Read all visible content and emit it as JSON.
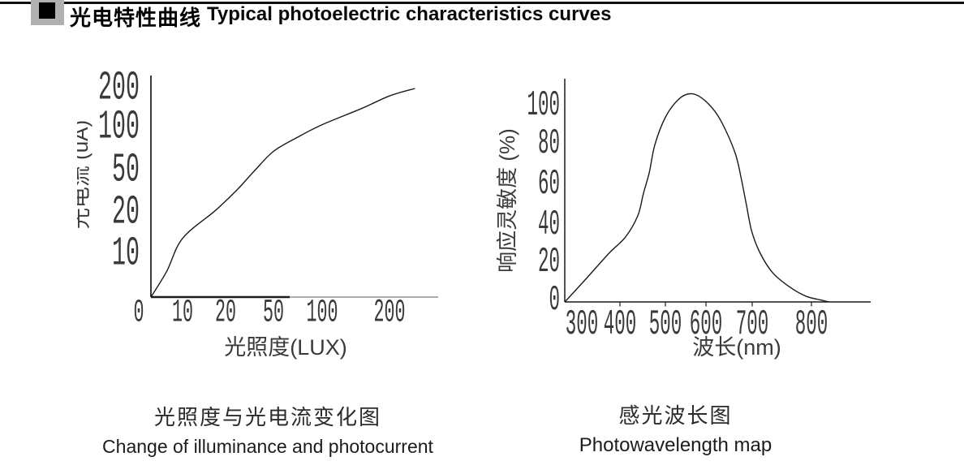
{
  "header": {
    "bullet_icon": "black-square",
    "title_zh": "光电特性曲线",
    "title_en": "Typical photoelectric characteristics curves"
  },
  "colors": {
    "ink": "#1a1a1a",
    "label_ink": "#3a3a3a",
    "axis_fade": "#8f8f8f",
    "header_highlight": "#b0b0b0"
  },
  "chart_data": [
    {
      "type": "line",
      "title_zh": "光照度与光电流变化图",
      "title_en": "Change of illuminance and photocurrent",
      "xlabel": "光照度(LUX)",
      "ylabel": "光电流 (uA)",
      "x_scale": "log-like",
      "y_scale": "log-like",
      "x_ticks": [
        0,
        10,
        20,
        50,
        100,
        200
      ],
      "y_ticks": [
        200,
        100,
        50,
        20,
        10
      ],
      "x_range": [
        0,
        260
      ],
      "y_range": [
        0,
        210
      ],
      "grid": false,
      "legend": "none",
      "series": [
        {
          "name": "photocurrent-vs-illuminance",
          "points": [
            [
              0,
              0
            ],
            [
              5,
              6
            ],
            [
              10,
              13
            ],
            [
              17,
              21
            ],
            [
              25,
              33
            ],
            [
              35,
              50
            ],
            [
              50,
              68
            ],
            [
              70,
              85
            ],
            [
              100,
              105
            ],
            [
              150,
              140
            ],
            [
              200,
              175
            ],
            [
              260,
              200
            ]
          ]
        }
      ]
    },
    {
      "type": "line",
      "title_zh": "感光波长图",
      "title_en": "Photowavelength map",
      "xlabel": "波长(nm)",
      "ylabel": "响应灵敏度 (%)",
      "x_scale": "linear",
      "y_scale": "linear",
      "x_ticks": [
        300,
        400,
        500,
        600,
        700,
        800
      ],
      "y_ticks": [
        100,
        80,
        60,
        40,
        20,
        0
      ],
      "x_range": [
        263,
        850
      ],
      "y_range": [
        0,
        110
      ],
      "grid": false,
      "legend": "none",
      "peak": {
        "wavelength": 540,
        "sensitivity": 106
      },
      "series": [
        {
          "name": "spectral-response",
          "points": [
            [
              263,
              0
            ],
            [
              310,
              12
            ],
            [
              360,
              25
            ],
            [
              395,
              33
            ],
            [
              422,
              44
            ],
            [
              434,
              55
            ],
            [
              447,
              66
            ],
            [
              459,
              80
            ],
            [
              482,
              94
            ],
            [
              510,
              103
            ],
            [
              535,
              106
            ],
            [
              560,
              104
            ],
            [
              590,
              97
            ],
            [
              612,
              88
            ],
            [
              635,
              75
            ],
            [
              647,
              63
            ],
            [
              658,
              50
            ],
            [
              670,
              36
            ],
            [
              688,
              25
            ],
            [
              715,
              15
            ],
            [
              750,
              8
            ],
            [
              787,
              3
            ],
            [
              820,
              1
            ],
            [
              838,
              0
            ]
          ]
        }
      ]
    }
  ]
}
